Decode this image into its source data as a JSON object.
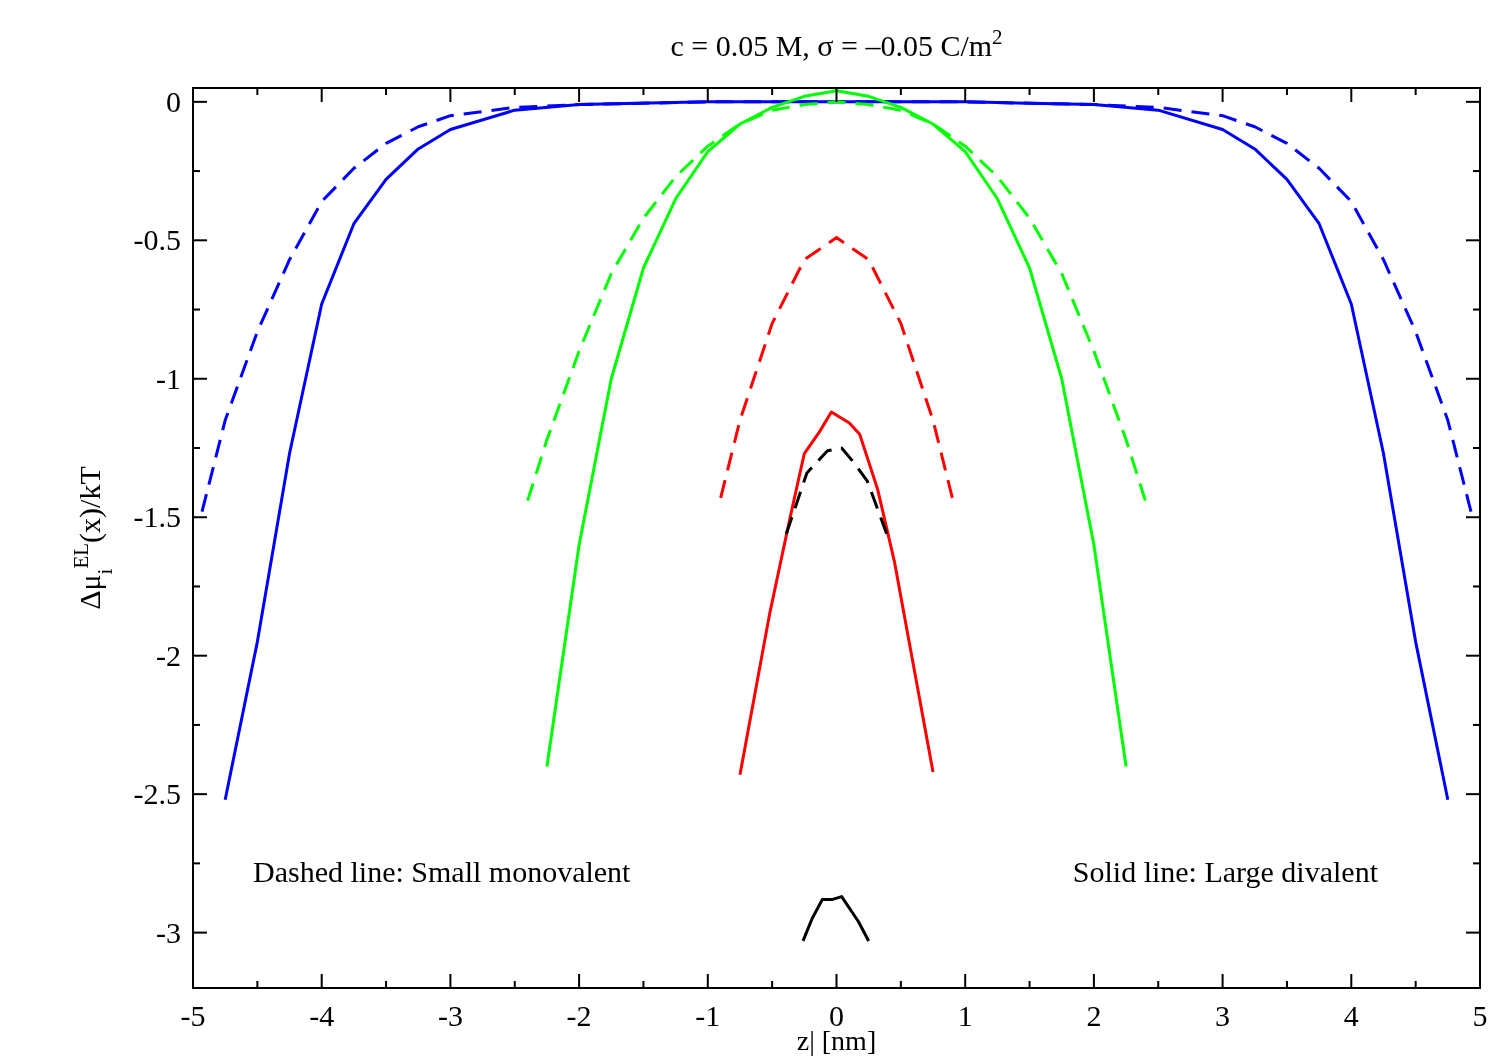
{
  "chart_data": {
    "type": "line",
    "title": "c = 0.05 M, σ = –0.05 C/m$^{2}$",
    "xlabel": "z| [nm]",
    "ylabel": "Δμ$_{i}$$^{EL}$(x)/kT",
    "xlim": [
      -5,
      5
    ],
    "ylim": [
      -3.2,
      0.05
    ],
    "xticks": [
      -5,
      {
        "value": -4.5,
        "label": null
      },
      -4,
      {
        "value": -3.5,
        "label": null
      },
      -3,
      {
        "value": -2.5,
        "label": null
      },
      -2,
      {
        "value": -1.5,
        "label": null
      },
      -1,
      {
        "value": -0.5,
        "label": null
      },
      0,
      {
        "value": 0.5,
        "label": null
      },
      1,
      {
        "value": 1.5,
        "label": null
      },
      2,
      {
        "value": 2.5,
        "label": null
      },
      3,
      {
        "value": 3.5,
        "label": null
      },
      4,
      {
        "value": 4.5,
        "label": null
      },
      5
    ],
    "yticks": [
      0,
      {
        "value": -0.25,
        "label": null
      },
      -0.5,
      {
        "value": -0.75,
        "label": null
      },
      -1,
      {
        "value": -1.25,
        "label": null
      },
      -1.5,
      {
        "value": -1.75,
        "label": null
      },
      -2,
      {
        "value": -2.25,
        "label": null
      },
      -2.5,
      {
        "value": -2.75,
        "label": null
      },
      -3
    ],
    "grid": false,
    "annotations": [
      "Dashed line: Small monovalent",
      "Solid line: Large divalent"
    ],
    "series": [
      {
        "color": "#0000ff",
        "line_style": "dashed",
        "x": [
          -4.93,
          -4.75,
          -4.5,
          -4.25,
          -4,
          -3.75,
          -3.5,
          -3.25,
          -3,
          -2.5,
          -2,
          -1,
          0,
          1,
          2,
          2.5,
          3,
          3.25,
          3.5,
          3.75,
          4,
          4.25,
          4.5,
          4.75,
          4.93
        ],
        "values": [
          -1.48,
          -1.15,
          -0.83,
          -0.57,
          -0.36,
          -0.24,
          -0.15,
          -0.09,
          -0.05,
          -0.02,
          -0.01,
          0,
          0,
          0,
          -0.01,
          -0.02,
          -0.05,
          -0.09,
          -0.15,
          -0.24,
          -0.36,
          -0.57,
          -0.83,
          -1.15,
          -1.48
        ]
      },
      {
        "color": "#0000ff",
        "line_style": "solid",
        "x": [
          -4.75,
          -4.5,
          -4.25,
          -4,
          -3.75,
          -3.5,
          -3.25,
          -3,
          -2.5,
          -2,
          -1,
          0,
          1,
          2,
          2.5,
          3,
          3.25,
          3.5,
          3.75,
          4,
          4.25,
          4.5,
          4.75
        ],
        "values": [
          -2.52,
          -1.95,
          -1.27,
          -0.73,
          -0.44,
          -0.28,
          -0.17,
          -0.1,
          -0.03,
          -0.01,
          0,
          0,
          0,
          -0.01,
          -0.03,
          -0.1,
          -0.17,
          -0.28,
          -0.44,
          -0.73,
          -1.27,
          -1.95,
          -2.52
        ]
      },
      {
        "color": "#00ff00",
        "line_style": "dashed",
        "x": [
          -2.4,
          -2.25,
          -2,
          -1.75,
          -1.5,
          -1.25,
          -1,
          -0.75,
          -0.5,
          -0.25,
          0,
          0.25,
          0.5,
          0.75,
          1,
          1.25,
          1.5,
          1.75,
          2,
          2.25,
          2.4
        ],
        "values": [
          -1.44,
          -1.22,
          -0.9,
          -0.62,
          -0.42,
          -0.27,
          -0.16,
          -0.08,
          -0.03,
          -0.01,
          0,
          -0.01,
          -0.03,
          -0.08,
          -0.16,
          -0.27,
          -0.42,
          -0.62,
          -0.9,
          -1.22,
          -1.44
        ]
      },
      {
        "color": "#00ff00",
        "line_style": "solid",
        "x": [
          -2.25,
          -2,
          -1.75,
          -1.5,
          -1.25,
          -1,
          -0.75,
          -0.5,
          -0.25,
          0,
          0.25,
          0.5,
          0.75,
          1,
          1.25,
          1.5,
          1.75,
          2,
          2.25
        ],
        "values": [
          -2.4,
          -1.6,
          -1.0,
          -0.6,
          -0.35,
          -0.18,
          -0.08,
          -0.02,
          0.02,
          0.04,
          0.02,
          -0.02,
          -0.08,
          -0.18,
          -0.35,
          -0.6,
          -1.0,
          -1.6,
          -2.4
        ]
      },
      {
        "color": "#ff0000",
        "line_style": "dashed",
        "x": [
          -0.9,
          -0.75,
          -0.5,
          -0.25,
          0,
          0.25,
          0.5,
          0.75,
          0.9
        ],
        "values": [
          -1.43,
          -1.15,
          -0.8,
          -0.57,
          -0.49,
          -0.57,
          -0.8,
          -1.15,
          -1.43
        ]
      },
      {
        "color": "#ff0000",
        "line_style": "solid",
        "x": [
          -0.75,
          -0.52,
          -0.36,
          -0.25,
          -0.13,
          -0.04,
          0.1,
          0.18,
          0.32,
          0.45,
          0.75
        ],
        "values": [
          -2.43,
          -1.85,
          -1.5,
          -1.27,
          -1.19,
          -1.12,
          -1.16,
          -1.2,
          -1.4,
          -1.66,
          -2.42
        ]
      },
      {
        "color": "#000000",
        "line_style": "dashed",
        "x": [
          -0.39,
          -0.23,
          -0.07,
          0.04,
          0.13,
          0.24,
          0.39
        ],
        "values": [
          -1.56,
          -1.34,
          -1.26,
          -1.25,
          -1.3,
          -1.37,
          -1.56
        ]
      },
      {
        "color": "#000000",
        "line_style": "solid",
        "x": [
          -0.26,
          -0.19,
          -0.11,
          -0.03,
          0.04,
          0.17,
          0.25
        ],
        "values": [
          -3.03,
          -2.95,
          -2.88,
          -2.88,
          -2.87,
          -2.96,
          -3.03
        ]
      }
    ]
  }
}
